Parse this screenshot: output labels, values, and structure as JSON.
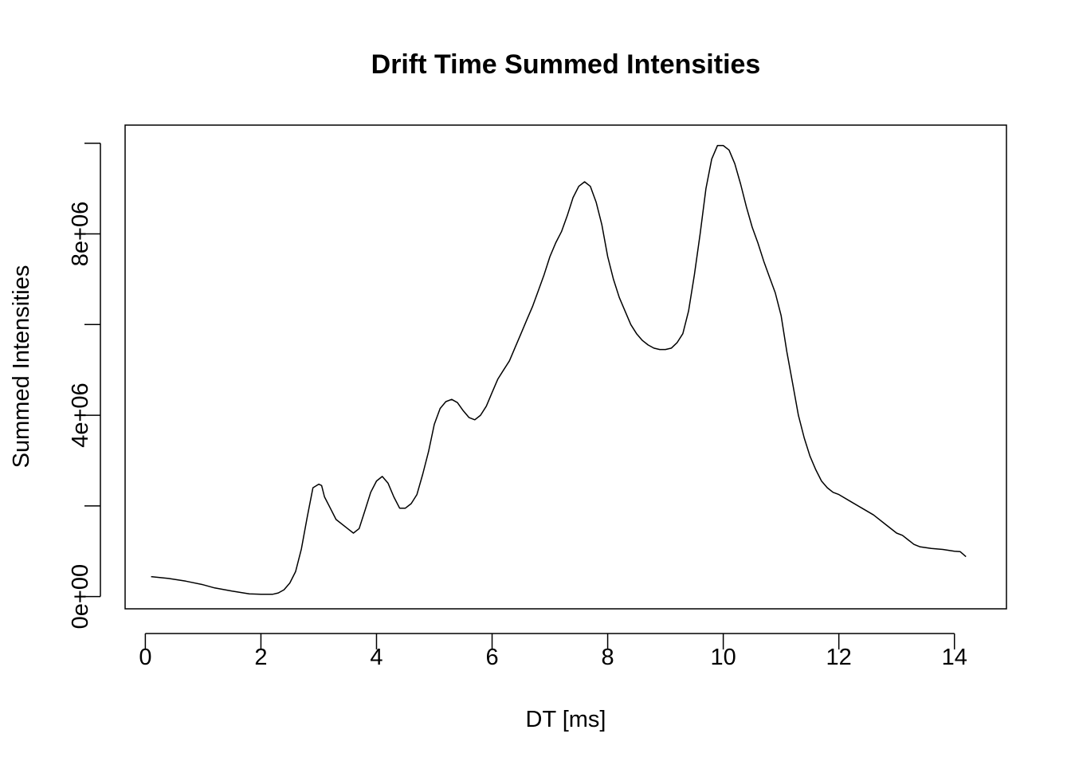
{
  "chart_data": {
    "type": "line",
    "title": "Drift Time Summed Intensities",
    "xlabel": "DT [ms]",
    "ylabel": "Summed Intensities",
    "xlim": [
      -0.35,
      14.9
    ],
    "ylim": [
      -270000,
      10400000
    ],
    "x_ticks": [
      0,
      2,
      4,
      6,
      8,
      10,
      12,
      14
    ],
    "x_tick_labels": [
      "0",
      "2",
      "4",
      "6",
      "8",
      "10",
      "12",
      "14"
    ],
    "y_ticks": [
      0,
      2000000,
      4000000,
      6000000,
      8000000,
      10000000
    ],
    "y_tick_labels": [
      "0e+00",
      "",
      "4e+06",
      "",
      "8e+06",
      ""
    ],
    "grid": false,
    "legend": "none",
    "line_color": "#000000",
    "series": [
      {
        "x": [
          0.1,
          0.4,
          0.7,
          1.0,
          1.2,
          1.5,
          1.8,
          2.0,
          2.2,
          2.3,
          2.4,
          2.5,
          2.6,
          2.7,
          2.8,
          2.9,
          3.0,
          3.05,
          3.1,
          3.2,
          3.3,
          3.5,
          3.6,
          3.7,
          3.8,
          3.9,
          4.0,
          4.1,
          4.2,
          4.3,
          4.4,
          4.5,
          4.6,
          4.7,
          4.8,
          4.9,
          5.0,
          5.1,
          5.2,
          5.3,
          5.4,
          5.5,
          5.6,
          5.7,
          5.8,
          5.9,
          6.0,
          6.1,
          6.2,
          6.3,
          6.4,
          6.5,
          6.6,
          6.7,
          6.8,
          6.9,
          7.0,
          7.1,
          7.2,
          7.3,
          7.4,
          7.5,
          7.6,
          7.7,
          7.8,
          7.9,
          8.0,
          8.1,
          8.2,
          8.3,
          8.4,
          8.5,
          8.6,
          8.7,
          8.8,
          8.9,
          9.0,
          9.1,
          9.2,
          9.3,
          9.4,
          9.5,
          9.6,
          9.7,
          9.8,
          9.9,
          10.0,
          10.1,
          10.2,
          10.3,
          10.4,
          10.5,
          10.6,
          10.7,
          10.8,
          10.9,
          11.0,
          11.1,
          11.2,
          11.3,
          11.4,
          11.5,
          11.6,
          11.7,
          11.8,
          11.9,
          12.0,
          12.2,
          12.4,
          12.6,
          12.8,
          13.0,
          13.1,
          13.2,
          13.3,
          13.4,
          13.6,
          13.8,
          14.0,
          14.1,
          14.2
        ],
        "y": [
          440000,
          400000,
          340000,
          260000,
          190000,
          120000,
          60000,
          50000,
          50000,
          80000,
          150000,
          300000,
          550000,
          1050000,
          1750000,
          2400000,
          2480000,
          2450000,
          2200000,
          1950000,
          1700000,
          1500000,
          1400000,
          1500000,
          1900000,
          2300000,
          2550000,
          2650000,
          2500000,
          2200000,
          1950000,
          1950000,
          2050000,
          2250000,
          2700000,
          3200000,
          3800000,
          4150000,
          4300000,
          4350000,
          4280000,
          4100000,
          3950000,
          3900000,
          4000000,
          4200000,
          4500000,
          4800000,
          5000000,
          5200000,
          5500000,
          5800000,
          6100000,
          6400000,
          6750000,
          7100000,
          7500000,
          7800000,
          8050000,
          8400000,
          8800000,
          9050000,
          9150000,
          9050000,
          8700000,
          8200000,
          7500000,
          7000000,
          6600000,
          6300000,
          6000000,
          5800000,
          5650000,
          5550000,
          5480000,
          5450000,
          5450000,
          5480000,
          5600000,
          5800000,
          6300000,
          7100000,
          8000000,
          9000000,
          9650000,
          9950000,
          9950000,
          9850000,
          9550000,
          9100000,
          8600000,
          8150000,
          7800000,
          7400000,
          7050000,
          6700000,
          6200000,
          5400000,
          4700000,
          4000000,
          3500000,
          3100000,
          2800000,
          2550000,
          2400000,
          2300000,
          2250000,
          2100000,
          1950000,
          1800000,
          1600000,
          1400000,
          1350000,
          1250000,
          1150000,
          1100000,
          1060000,
          1040000,
          1000000,
          990000,
          880000
        ]
      }
    ]
  }
}
